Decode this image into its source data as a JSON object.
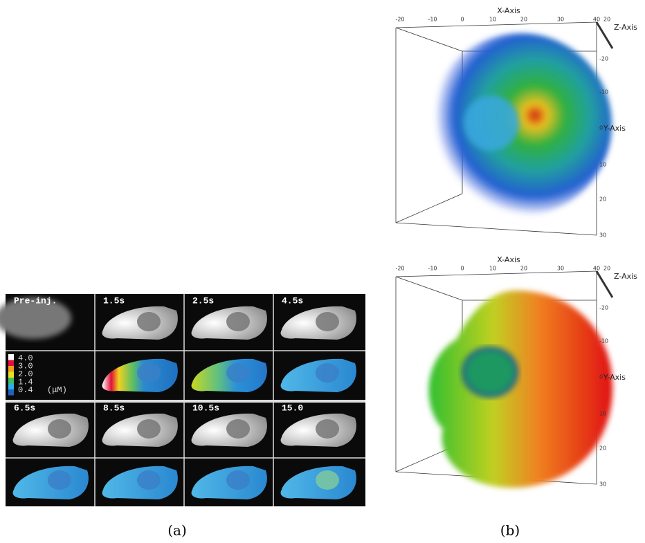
{
  "panel_a": {
    "label": "(a)",
    "frames": [
      "Pre-inj.",
      "1.5s",
      "2.5s",
      "4.5s",
      "6.5s",
      "8.5s",
      "10.5s",
      "15.0"
    ],
    "colorbar": {
      "labels": [
        "4.0",
        "3.0",
        "2.0",
        "1.4",
        "0.4"
      ],
      "unit": "(μM)"
    }
  },
  "panel_b": {
    "label": "(b)",
    "plots": [
      {
        "x_axis": "X-Axis",
        "y_axis": "Y-Axis",
        "z_axis": "Z-Axis",
        "x_ticks": [
          "-20",
          "-10",
          "0",
          "10",
          "20",
          "30",
          "40"
        ],
        "y_ticks": [
          "-20",
          "-10",
          "0",
          "10",
          "20",
          "30"
        ],
        "z_ticks": [
          "20"
        ]
      },
      {
        "x_axis": "X-Axis",
        "y_axis": "Y-Axis",
        "z_axis": "Z-Axis",
        "x_ticks": [
          "-20",
          "-10",
          "0",
          "10",
          "20",
          "30",
          "40"
        ],
        "y_ticks": [
          "-20",
          "-10",
          "0",
          "10",
          "20",
          "30"
        ],
        "z_ticks": [
          "20"
        ]
      }
    ]
  }
}
